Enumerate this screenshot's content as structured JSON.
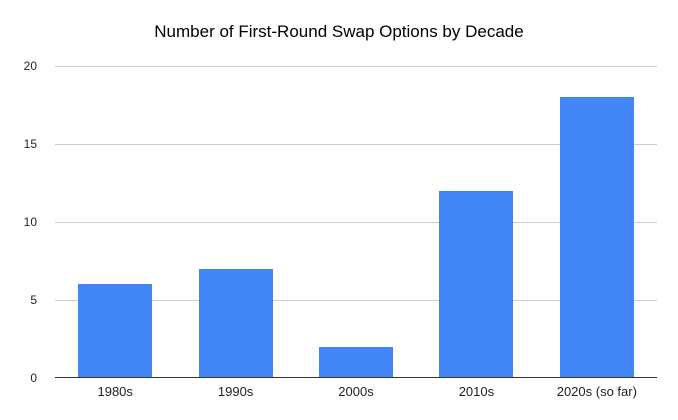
{
  "chart_data": {
    "type": "bar",
    "title": "Number of First-Round Swap Options by Decade",
    "categories": [
      "1980s",
      "1990s",
      "2000s",
      "2010s",
      "2020s (so far)"
    ],
    "values": [
      6,
      7,
      2,
      12,
      18
    ],
    "xlabel": "",
    "ylabel": "",
    "ylim": [
      0,
      20
    ],
    "yticks": [
      0,
      5,
      10,
      15,
      20
    ],
    "grid": true,
    "legend": false,
    "colors": {
      "bar": "#4285f4",
      "gridline": "#cccccc",
      "axis_line": "#333333",
      "tick_label": "#1f1f1f",
      "title": "#000000",
      "background": "#ffffff"
    }
  }
}
